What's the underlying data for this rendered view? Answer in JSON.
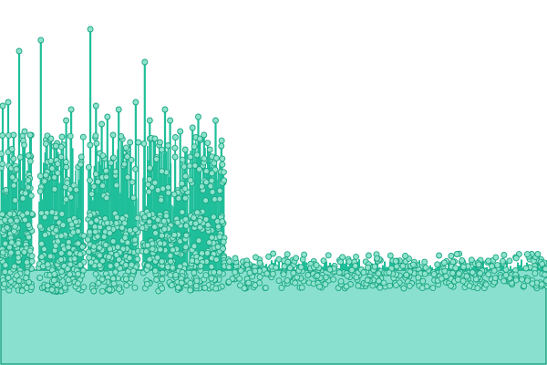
{
  "chart_data": {
    "type": "scatter",
    "style": "lollipop-stems-with-markers-over-filled-baseline-band",
    "colors": {
      "background": "#ffffff",
      "stem": "#1fbf9a",
      "marker_fill": "#8fe3cc",
      "marker_stroke": "#19a684",
      "band_fill": "#8ae0cf",
      "band_stroke": "#19a684"
    },
    "axes_visible": false,
    "grid": false,
    "legend": "none",
    "xlim": [
      0,
      600
    ],
    "ylim": [
      0,
      100
    ],
    "band_level": 26,
    "clusters": [
      {
        "x_range": [
          0,
          36
        ],
        "stem_tops": [
          71,
          72,
          63,
          86,
          64,
          63
        ],
        "cloud": [
          20,
          42
        ],
        "count": 150
      },
      {
        "x_range": [
          42,
          92
        ],
        "stem_tops": [
          89,
          52,
          62,
          60,
          57,
          67,
          70,
          48,
          57
        ],
        "cloud": [
          20,
          42
        ],
        "count": 160
      },
      {
        "x_range": [
          96,
          152
        ],
        "stem_tops": [
          92,
          71,
          66,
          68,
          63,
          70,
          55,
          61,
          72
        ],
        "cloud": [
          20,
          42
        ],
        "count": 180
      },
      {
        "x_range": [
          156,
          206
        ],
        "stem_tops": [
          83,
          67,
          62,
          61,
          70,
          67,
          57,
          64,
          59
        ],
        "cloud": [
          20,
          42
        ],
        "count": 170
      },
      {
        "x_range": [
          208,
          246
        ],
        "stem_tops": [
          65,
          68,
          63,
          59,
          67,
          60
        ],
        "cloud": [
          20,
          42
        ],
        "count": 120
      }
    ],
    "flat_region": {
      "x_range": [
        246,
        600
      ],
      "y_range": [
        21,
        29
      ],
      "count": 420
    }
  }
}
